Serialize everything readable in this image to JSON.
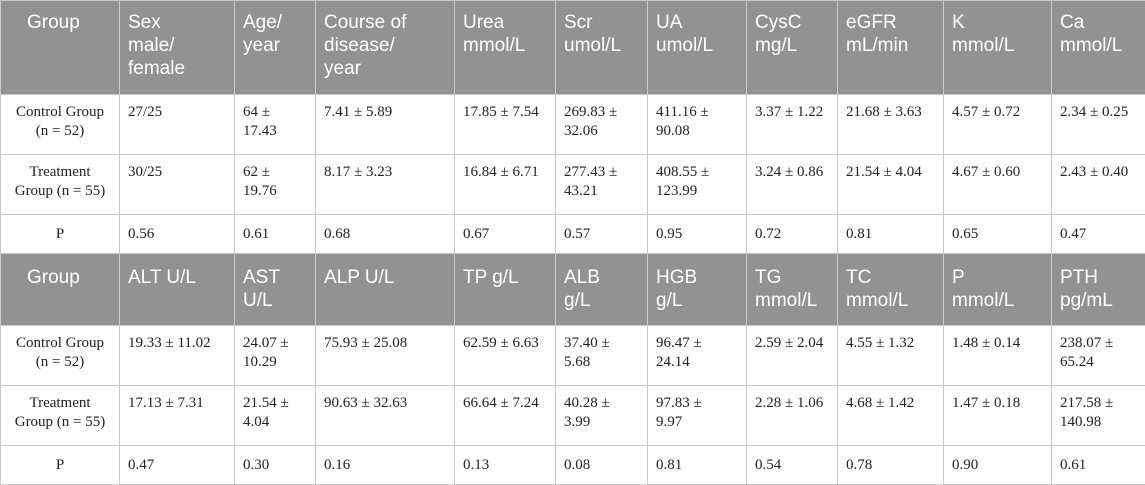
{
  "table": {
    "header1": [
      [
        "Group"
      ],
      [
        "Sex",
        "male/",
        "female"
      ],
      [
        "Age/",
        "year"
      ],
      [
        "Course of",
        "disease/",
        "year"
      ],
      [
        "Urea",
        "mmol/L"
      ],
      [
        "Scr",
        "umol/L"
      ],
      [
        "UA",
        "umol/L"
      ],
      [
        "CysC",
        "mg/L"
      ],
      [
        "eGFR",
        "mL/min"
      ],
      [
        "K",
        "mmol/L"
      ],
      [
        "Ca",
        "mmol/L"
      ]
    ],
    "rows1": [
      [
        [
          "Control Group",
          "(n = 52)"
        ],
        [
          "27/25"
        ],
        [
          "64 ±",
          "17.43"
        ],
        [
          "7.41 ± 5.89"
        ],
        [
          "17.85 ± 7.54"
        ],
        [
          "269.83 ±",
          "32.06"
        ],
        [
          "411.16 ±",
          "90.08"
        ],
        [
          "3.37 ± 1.22"
        ],
        [
          "21.68 ± 3.63"
        ],
        [
          "4.57 ± 0.72"
        ],
        [
          "2.34 ± 0.25"
        ]
      ],
      [
        [
          "Treatment",
          "Group (n = 55)"
        ],
        [
          "30/25"
        ],
        [
          "62 ±",
          "19.76"
        ],
        [
          "8.17 ± 3.23"
        ],
        [
          "16.84 ± 6.71"
        ],
        [
          "277.43 ±",
          "43.21"
        ],
        [
          "408.55 ±",
          "123.99"
        ],
        [
          "3.24 ± 0.86"
        ],
        [
          "21.54 ± 4.04"
        ],
        [
          "4.67 ± 0.60"
        ],
        [
          "2.43 ± 0.40"
        ]
      ],
      [
        [
          "P"
        ],
        [
          "0.56"
        ],
        [
          "0.61"
        ],
        [
          "0.68"
        ],
        [
          "0.67"
        ],
        [
          "0.57"
        ],
        [
          "0.95"
        ],
        [
          "0.72"
        ],
        [
          "0.81"
        ],
        [
          "0.65"
        ],
        [
          "0.47"
        ]
      ]
    ],
    "header2": [
      [
        "Group"
      ],
      [
        "ALT U/L"
      ],
      [
        "AST",
        "U/L"
      ],
      [
        "ALP U/L"
      ],
      [
        "TP g/L"
      ],
      [
        "ALB",
        "g/L"
      ],
      [
        "HGB",
        "g/L"
      ],
      [
        "TG",
        "mmol/L"
      ],
      [
        "TC",
        "mmol/L"
      ],
      [
        "P",
        "mmol/L"
      ],
      [
        "PTH",
        "pg/mL"
      ]
    ],
    "rows2": [
      [
        [
          "Control Group",
          "(n = 52)"
        ],
        [
          "19.33 ± 11.02"
        ],
        [
          "24.07 ±",
          "10.29"
        ],
        [
          "75.93 ± 25.08"
        ],
        [
          "62.59 ± 6.63"
        ],
        [
          "37.40 ±",
          "5.68"
        ],
        [
          "96.47 ±",
          "24.14"
        ],
        [
          "2.59 ± 2.04"
        ],
        [
          "4.55 ± 1.32"
        ],
        [
          "1.48 ± 0.14"
        ],
        [
          "238.07 ±",
          "65.24"
        ]
      ],
      [
        [
          "Treatment",
          "Group (n = 55)"
        ],
        [
          "17.13 ± 7.31"
        ],
        [
          "21.54 ±",
          "4.04"
        ],
        [
          "90.63 ± 32.63"
        ],
        [
          "66.64 ± 7.24"
        ],
        [
          "40.28 ±",
          "3.99"
        ],
        [
          "97.83 ±",
          "9.97"
        ],
        [
          "2.28 ± 1.06"
        ],
        [
          "4.68 ± 1.42"
        ],
        [
          "1.47 ± 0.18"
        ],
        [
          "217.58 ±",
          "140.98"
        ]
      ],
      [
        [
          "P"
        ],
        [
          "0.47"
        ],
        [
          "0.30"
        ],
        [
          "0.16"
        ],
        [
          "0.13"
        ],
        [
          "0.08"
        ],
        [
          "0.81"
        ],
        [
          "0.54"
        ],
        [
          "0.78"
        ],
        [
          "0.90"
        ],
        [
          "0.61"
        ]
      ]
    ]
  }
}
